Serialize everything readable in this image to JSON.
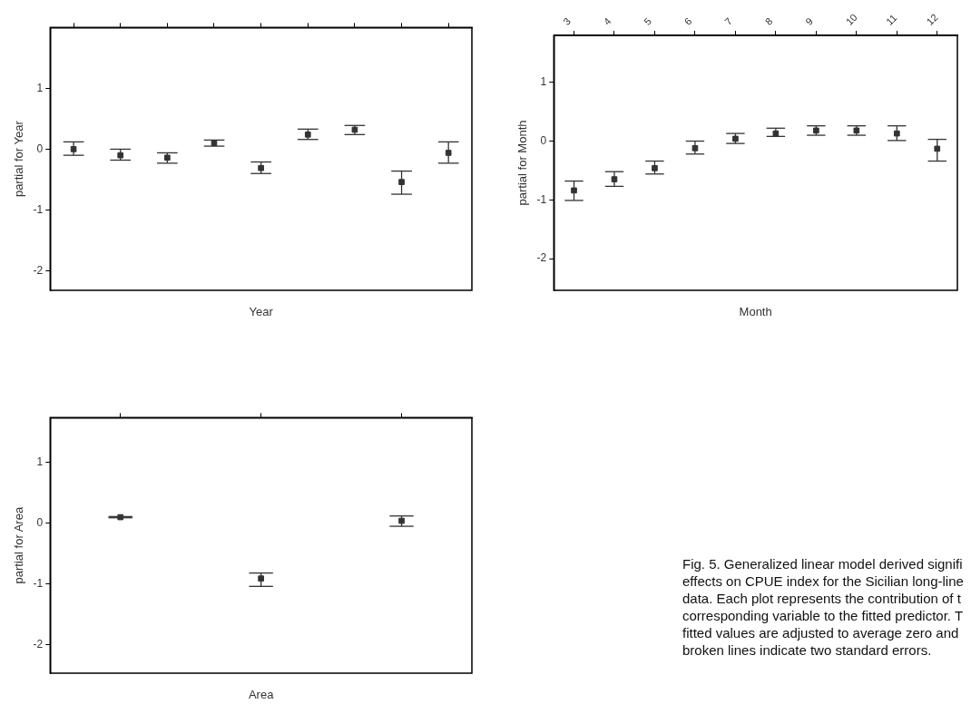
{
  "chart_data": [
    {
      "type": "scatter",
      "xlabel": "Year",
      "ylabel": "partial for Year",
      "categories": [
        null,
        null,
        null,
        null,
        null,
        null,
        null,
        null,
        null
      ],
      "color": "#333333",
      "values": [
        0.0,
        -0.1,
        -0.14,
        0.1,
        -0.31,
        0.24,
        0.32,
        -0.54,
        -0.06
      ],
      "errors": [
        [
          -0.1,
          0.12
        ],
        [
          -0.18,
          0.0
        ],
        [
          -0.23,
          -0.06
        ],
        [
          0.05,
          0.15
        ],
        [
          -0.4,
          -0.21
        ],
        [
          0.16,
          0.33
        ],
        [
          0.24,
          0.39
        ],
        [
          -0.74,
          -0.36
        ],
        [
          -0.23,
          0.12
        ]
      ],
      "ylim": [
        -2.32,
        2.0
      ],
      "yticks": [
        -2,
        -1,
        0,
        1
      ],
      "marker": "square"
    },
    {
      "type": "scatter",
      "xlabel": "Month",
      "ylabel": "partial for Month",
      "categories": [
        "3",
        "4",
        "5",
        "6",
        "7",
        "8",
        "9",
        "10",
        "11",
        "12"
      ],
      "color": "#333333",
      "values": [
        -0.84,
        -0.65,
        -0.46,
        -0.12,
        0.04,
        0.13,
        0.18,
        0.18,
        0.13,
        -0.13
      ],
      "errors": [
        [
          -1.01,
          -0.68
        ],
        [
          -0.77,
          -0.52
        ],
        [
          -0.56,
          -0.34
        ],
        [
          -0.22,
          0.0
        ],
        [
          -0.04,
          0.13
        ],
        [
          0.08,
          0.22
        ],
        [
          0.1,
          0.26
        ],
        [
          0.1,
          0.26
        ],
        [
          0.01,
          0.26
        ],
        [
          -0.34,
          0.03
        ]
      ],
      "ylim": [
        -2.54,
        1.8
      ],
      "yticks": [
        -2,
        -1,
        0,
        1
      ],
      "marker": "square"
    },
    {
      "type": "scatter",
      "xlabel": "Area",
      "ylabel": "partial for Area",
      "categories": [
        null,
        null,
        null
      ],
      "color": "#333333",
      "values": [
        0.1,
        -0.91,
        0.04
      ],
      "errors": [
        [
          0.09,
          0.11
        ],
        [
          -1.04,
          -0.82
        ],
        [
          -0.05,
          0.12
        ]
      ],
      "ylim": [
        -2.47,
        1.74
      ],
      "yticks": [
        -2,
        -1,
        0,
        1
      ],
      "marker": "square",
      "annotations": [
        "Fig. 5. Generalized linear model derived signifi effects on CPUE index for the Sicilian long-line data. Each plot represents the contribution of t corresponding variable to the fitted predictor. T fitted values are adjusted to average zero and broken lines indicate two standard errors."
      ]
    }
  ]
}
